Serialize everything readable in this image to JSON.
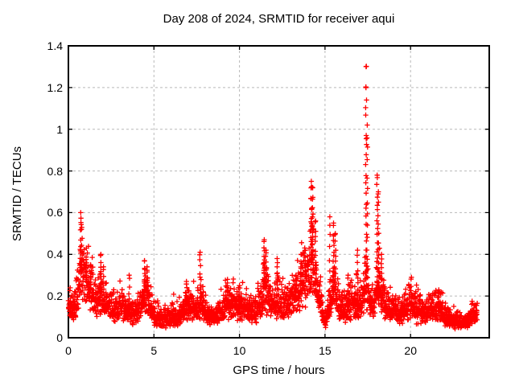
{
  "figure": {
    "background": "#ffffff",
    "border_color": "#000000",
    "grid_color": "#b9b9b9",
    "text_color": "#000000"
  },
  "chart_data": {
    "type": "scatter",
    "title": "Day 208 of 2024, SRMTID for receiver aqui",
    "xlabel": "GPS time / hours",
    "ylabel": "SRMTID / TECUs",
    "xlim": [
      0,
      24.6
    ],
    "ylim": [
      0,
      1.4
    ],
    "grid": true,
    "legend": "none",
    "xticks": [
      {
        "value": 0,
        "label": "0"
      },
      {
        "value": 5,
        "label": "5"
      },
      {
        "value": 10,
        "label": "10"
      },
      {
        "value": 15,
        "label": "15"
      },
      {
        "value": 20,
        "label": "20"
      }
    ],
    "yticks": [
      {
        "value": 0,
        "label": "0"
      },
      {
        "value": 0.2,
        "label": "0.2"
      },
      {
        "value": 0.4,
        "label": "0.4"
      },
      {
        "value": 0.6,
        "label": "0.6"
      },
      {
        "value": 0.8,
        "label": "0.8"
      },
      {
        "value": 1,
        "label": "1"
      },
      {
        "value": 1.2,
        "label": "1.2"
      },
      {
        "value": 1.4,
        "label": "1.4"
      }
    ],
    "series": [
      {
        "name": "SRMTID",
        "marker": "plus",
        "color": "#ff0000",
        "samples_per_hour": 120,
        "time_span_hours": [
          0,
          23.9
        ],
        "noise_factor": 0.5,
        "envelope_points": [
          [
            0,
            0.17
          ],
          [
            0.2,
            0.15
          ],
          [
            0.4,
            0.16
          ],
          [
            0.55,
            0.2
          ],
          [
            0.65,
            0.28
          ],
          [
            0.75,
            0.32
          ],
          [
            0.85,
            0.3
          ],
          [
            1.0,
            0.28
          ],
          [
            1.1,
            0.3
          ],
          [
            1.25,
            0.24
          ],
          [
            1.4,
            0.2
          ],
          [
            1.6,
            0.17
          ],
          [
            1.8,
            0.2
          ],
          [
            1.95,
            0.23
          ],
          [
            2.1,
            0.2
          ],
          [
            2.3,
            0.17
          ],
          [
            2.5,
            0.15
          ],
          [
            2.7,
            0.13
          ],
          [
            2.9,
            0.14
          ],
          [
            3.1,
            0.15
          ],
          [
            3.3,
            0.14
          ],
          [
            3.5,
            0.13
          ],
          [
            3.7,
            0.12
          ],
          [
            3.9,
            0.13
          ],
          [
            4.1,
            0.14
          ],
          [
            4.3,
            0.17
          ],
          [
            4.5,
            0.22
          ],
          [
            4.65,
            0.2
          ],
          [
            4.8,
            0.15
          ],
          [
            5.0,
            0.11
          ],
          [
            5.2,
            0.1
          ],
          [
            5.4,
            0.09
          ],
          [
            5.6,
            0.09
          ],
          [
            5.8,
            0.1
          ],
          [
            6.0,
            0.1
          ],
          [
            6.2,
            0.1
          ],
          [
            6.4,
            0.11
          ],
          [
            6.6,
            0.13
          ],
          [
            6.8,
            0.15
          ],
          [
            7.0,
            0.15
          ],
          [
            7.2,
            0.16
          ],
          [
            7.4,
            0.14
          ],
          [
            7.6,
            0.15
          ],
          [
            7.75,
            0.18
          ],
          [
            7.9,
            0.14
          ],
          [
            8.1,
            0.12
          ],
          [
            8.3,
            0.11
          ],
          [
            8.5,
            0.11
          ],
          [
            8.7,
            0.12
          ],
          [
            8.9,
            0.13
          ],
          [
            9.1,
            0.14
          ],
          [
            9.3,
            0.17
          ],
          [
            9.5,
            0.16
          ],
          [
            9.7,
            0.17
          ],
          [
            9.9,
            0.16
          ],
          [
            10.1,
            0.15
          ],
          [
            10.3,
            0.15
          ],
          [
            10.5,
            0.14
          ],
          [
            10.7,
            0.13
          ],
          [
            10.9,
            0.13
          ],
          [
            11.1,
            0.15
          ],
          [
            11.3,
            0.18
          ],
          [
            11.5,
            0.24
          ],
          [
            11.65,
            0.2
          ],
          [
            11.8,
            0.18
          ],
          [
            12.0,
            0.17
          ],
          [
            12.2,
            0.19
          ],
          [
            12.4,
            0.16
          ],
          [
            12.6,
            0.15
          ],
          [
            12.8,
            0.16
          ],
          [
            13.0,
            0.17
          ],
          [
            13.2,
            0.2
          ],
          [
            13.4,
            0.24
          ],
          [
            13.6,
            0.26
          ],
          [
            13.8,
            0.28
          ],
          [
            14.0,
            0.3
          ],
          [
            14.15,
            0.35
          ],
          [
            14.3,
            0.36
          ],
          [
            14.45,
            0.3
          ],
          [
            14.6,
            0.25
          ],
          [
            14.75,
            0.18
          ],
          [
            14.9,
            0.1
          ],
          [
            15.0,
            0.08
          ],
          [
            15.1,
            0.1
          ],
          [
            15.25,
            0.16
          ],
          [
            15.4,
            0.22
          ],
          [
            15.55,
            0.26
          ],
          [
            15.7,
            0.2
          ],
          [
            15.85,
            0.16
          ],
          [
            16.0,
            0.14
          ],
          [
            16.2,
            0.14
          ],
          [
            16.4,
            0.16
          ],
          [
            16.6,
            0.17
          ],
          [
            16.8,
            0.18
          ],
          [
            17.0,
            0.16
          ],
          [
            17.2,
            0.2
          ],
          [
            17.4,
            0.28
          ],
          [
            17.55,
            0.2
          ],
          [
            17.7,
            0.17
          ],
          [
            17.85,
            0.18
          ],
          [
            17.95,
            0.22
          ],
          [
            18.1,
            0.26
          ],
          [
            18.25,
            0.22
          ],
          [
            18.4,
            0.18
          ],
          [
            18.6,
            0.16
          ],
          [
            18.8,
            0.14
          ],
          [
            19.0,
            0.14
          ],
          [
            19.2,
            0.13
          ],
          [
            19.4,
            0.13
          ],
          [
            19.6,
            0.14
          ],
          [
            19.8,
            0.15
          ],
          [
            20.0,
            0.17
          ],
          [
            20.2,
            0.15
          ],
          [
            20.4,
            0.14
          ],
          [
            20.6,
            0.13
          ],
          [
            20.8,
            0.13
          ],
          [
            21.0,
            0.13
          ],
          [
            21.2,
            0.14
          ],
          [
            21.4,
            0.15
          ],
          [
            21.6,
            0.15
          ],
          [
            21.8,
            0.13
          ],
          [
            22.0,
            0.11
          ],
          [
            22.2,
            0.1
          ],
          [
            22.4,
            0.09
          ],
          [
            22.6,
            0.08
          ],
          [
            22.8,
            0.08
          ],
          [
            23.0,
            0.07
          ],
          [
            23.2,
            0.08
          ],
          [
            23.4,
            0.09
          ],
          [
            23.6,
            0.11
          ],
          [
            23.8,
            0.12
          ],
          [
            23.9,
            0.12
          ]
        ],
        "spike_columns": [
          [
            0.72,
            0.6,
            10
          ],
          [
            0.78,
            0.53,
            8
          ],
          [
            1.05,
            0.43,
            8
          ],
          [
            1.3,
            0.35,
            6
          ],
          [
            1.9,
            0.4,
            8
          ],
          [
            2.05,
            0.34,
            6
          ],
          [
            3.55,
            0.3,
            6
          ],
          [
            4.45,
            0.37,
            10
          ],
          [
            4.6,
            0.34,
            8
          ],
          [
            6.9,
            0.27,
            6
          ],
          [
            7.7,
            0.41,
            10
          ],
          [
            9.3,
            0.28,
            6
          ],
          [
            10.0,
            0.25,
            5
          ],
          [
            11.45,
            0.47,
            14
          ],
          [
            11.55,
            0.42,
            10
          ],
          [
            12.2,
            0.38,
            8
          ],
          [
            13.3,
            0.3,
            6
          ],
          [
            13.6,
            0.4,
            8
          ],
          [
            13.85,
            0.42,
            8
          ],
          [
            14.2,
            0.75,
            18
          ],
          [
            14.28,
            0.72,
            16
          ],
          [
            14.45,
            0.56,
            10
          ],
          [
            15.28,
            0.58,
            8
          ],
          [
            15.5,
            0.55,
            12
          ],
          [
            15.6,
            0.5,
            10
          ],
          [
            16.35,
            0.3,
            6
          ],
          [
            16.9,
            0.42,
            8
          ],
          [
            17.4,
            1.3,
            26
          ],
          [
            17.47,
            1.02,
            14
          ],
          [
            18.05,
            0.78,
            16
          ],
          [
            18.12,
            0.7,
            12
          ],
          [
            18.3,
            0.4,
            8
          ],
          [
            20.05,
            0.29,
            6
          ],
          [
            21.65,
            0.23,
            4
          ]
        ],
        "notable_peaks": [
          {
            "hour": 0.72,
            "value": 0.6
          },
          {
            "hour": 7.7,
            "value": 0.41
          },
          {
            "hour": 11.45,
            "value": 0.47
          },
          {
            "hour": 14.2,
            "value": 0.75
          },
          {
            "hour": 15.5,
            "value": 0.55
          },
          {
            "hour": 17.4,
            "value": 1.3
          },
          {
            "hour": 18.05,
            "value": 0.78
          }
        ]
      }
    ]
  }
}
